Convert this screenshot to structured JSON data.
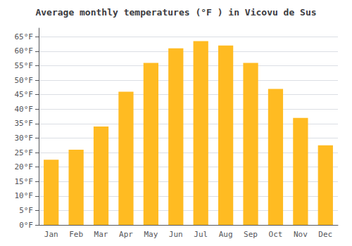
{
  "chart_data": {
    "type": "bar",
    "title": "Average monthly temperatures (°F ) in Vicovu de Sus",
    "categories": [
      "Jan",
      "Feb",
      "Mar",
      "Apr",
      "May",
      "Jun",
      "Jul",
      "Aug",
      "Sep",
      "Oct",
      "Nov",
      "Dec"
    ],
    "values": [
      22.5,
      26,
      34,
      46,
      56,
      61,
      63.5,
      62,
      56,
      47,
      37,
      27.5
    ],
    "color": "#FFBB22",
    "ylim": [
      0,
      68
    ],
    "yticks": [
      {
        "value": 0,
        "label": "0°F"
      },
      {
        "value": 5,
        "label": "5°F"
      },
      {
        "value": 10,
        "label": "10°F"
      },
      {
        "value": 15,
        "label": "15°F"
      },
      {
        "value": 20,
        "label": "20°F"
      },
      {
        "value": 25,
        "label": "25°F"
      },
      {
        "value": 30,
        "label": "30°F"
      },
      {
        "value": 35,
        "label": "35°F"
      },
      {
        "value": 40,
        "label": "40°F"
      },
      {
        "value": 45,
        "label": "45°F"
      },
      {
        "value": 50,
        "label": "50°F"
      },
      {
        "value": 55,
        "label": "55°F"
      },
      {
        "value": 60,
        "label": "60°F"
      },
      {
        "value": 65,
        "label": "65°F"
      }
    ],
    "grid": true
  }
}
